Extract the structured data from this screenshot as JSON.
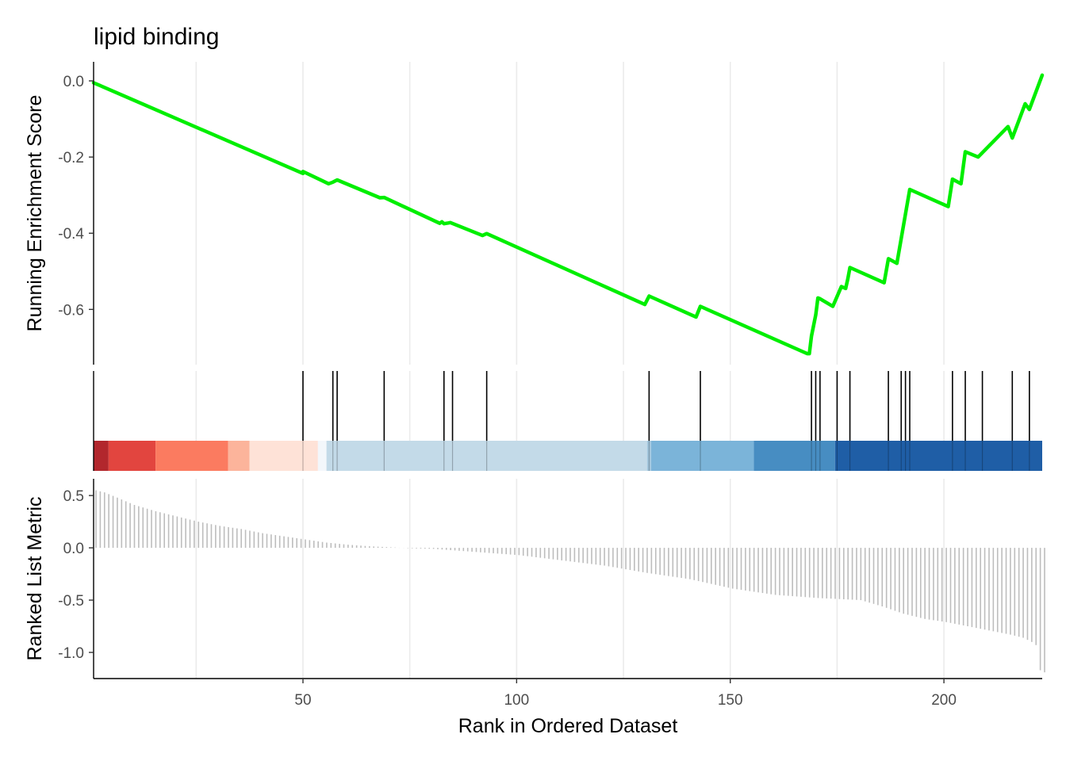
{
  "chart_data": {
    "type": "line",
    "title": "lipid binding",
    "xlabel": "Rank in Ordered Dataset",
    "xlim": [
      1,
      223
    ],
    "x_ticks": [
      50,
      100,
      150,
      200
    ],
    "x_tick_labels": [
      "50",
      "100",
      "150",
      "200"
    ],
    "grid": true,
    "panels": {
      "enrichment": {
        "ylabel": "Running Enrichment Score",
        "ylim": [
          -0.745,
          0.05
        ],
        "y_ticks": [
          0.0,
          -0.2,
          -0.4,
          -0.6
        ],
        "y_tick_labels": [
          "0.0",
          "-0.2",
          "-0.4",
          "-0.6"
        ],
        "line_color": "#00ee00",
        "series": [
          {
            "x": [
              1,
              50,
              50,
              56,
              57,
              57.5,
              58,
              68,
              69,
              82,
              82.5,
              83,
              84,
              84.5,
              92,
              93,
              130,
              131,
              142,
              143,
              168,
              168.5,
              169,
              170,
              170.5,
              171,
              174,
              176,
              177,
              177.5,
              178,
              186,
              187,
              189,
              192,
              201,
              202,
              204,
              205,
              208,
              215,
              216,
              219,
              220,
              223
            ],
            "y": [
              -0.005,
              -0.243,
              -0.238,
              -0.27,
              -0.266,
              -0.263,
              -0.26,
              -0.307,
              -0.306,
              -0.374,
              -0.37,
              -0.375,
              -0.373,
              -0.372,
              -0.406,
              -0.401,
              -0.587,
              -0.565,
              -0.62,
              -0.592,
              -0.716,
              -0.716,
              -0.67,
              -0.614,
              -0.57,
              -0.572,
              -0.592,
              -0.54,
              -0.545,
              -0.52,
              -0.49,
              -0.53,
              -0.467,
              -0.479,
              -0.285,
              -0.33,
              -0.258,
              -0.27,
              -0.186,
              -0.2,
              -0.12,
              -0.15,
              -0.06,
              -0.075,
              0.015
            ]
          }
        ]
      },
      "hits": {
        "positions": [
          50,
          57,
          58,
          69,
          83,
          85,
          93,
          131,
          143,
          169,
          170,
          171,
          175,
          178,
          187,
          190,
          191,
          192,
          202,
          205,
          209,
          216,
          220
        ],
        "color_bands": [
          {
            "from": 0,
            "to": 4.5,
            "color": "#b2272d"
          },
          {
            "from": 4.5,
            "to": 15.5,
            "color": "#e2453f"
          },
          {
            "from": 15.5,
            "to": 32.5,
            "color": "#fb7b60"
          },
          {
            "from": 32.5,
            "to": 37.5,
            "color": "#fcb49b"
          },
          {
            "from": 37.5,
            "to": 53.5,
            "color": "#fee2d7"
          },
          {
            "from": 53.5,
            "to": 55.5,
            "color": "#f3f7fb"
          },
          {
            "from": 55.5,
            "to": 130.5,
            "color": "#c3dae8"
          },
          {
            "from": 130.5,
            "to": 131.5,
            "color": "#a4c8df"
          },
          {
            "from": 131.5,
            "to": 155.5,
            "color": "#7bb4d9"
          },
          {
            "from": 155.5,
            "to": 174.5,
            "color": "#478dc2"
          },
          {
            "from": 174.5,
            "to": 223,
            "color": "#1f5ea6"
          }
        ]
      },
      "ranked_metric": {
        "ylabel": "Ranked List Metric",
        "ylim": [
          -1.25,
          0.66
        ],
        "y_ticks": [
          0.5,
          0.0,
          -0.5,
          -1.0
        ],
        "y_tick_labels": [
          "0.5",
          "0.0",
          "-0.5",
          "-1.0"
        ],
        "bar_color": "#bdbdbd",
        "anchors": [
          [
            1,
            0.55
          ],
          [
            3,
            0.53
          ],
          [
            6,
            0.48
          ],
          [
            10,
            0.41
          ],
          [
            15,
            0.35
          ],
          [
            20,
            0.3
          ],
          [
            25,
            0.25
          ],
          [
            30,
            0.21
          ],
          [
            35,
            0.18
          ],
          [
            40,
            0.14
          ],
          [
            45,
            0.11
          ],
          [
            50,
            0.08
          ],
          [
            55,
            0.05
          ],
          [
            60,
            0.03
          ],
          [
            65,
            0.015
          ],
          [
            70,
            0.005
          ],
          [
            75,
            -0.005
          ],
          [
            80,
            -0.01
          ],
          [
            90,
            -0.04
          ],
          [
            100,
            -0.07
          ],
          [
            110,
            -0.12
          ],
          [
            120,
            -0.17
          ],
          [
            130,
            -0.24
          ],
          [
            140,
            -0.3
          ],
          [
            150,
            -0.39
          ],
          [
            160,
            -0.45
          ],
          [
            170,
            -0.48
          ],
          [
            180,
            -0.5
          ],
          [
            185,
            -0.56
          ],
          [
            190,
            -0.63
          ],
          [
            195,
            -0.68
          ],
          [
            200,
            -0.71
          ],
          [
            205,
            -0.75
          ],
          [
            210,
            -0.79
          ],
          [
            215,
            -0.83
          ],
          [
            218,
            -0.86
          ],
          [
            220,
            -0.9
          ],
          [
            221,
            -0.93
          ],
          [
            222,
            -1.17
          ],
          [
            223,
            -1.19
          ]
        ]
      }
    }
  }
}
